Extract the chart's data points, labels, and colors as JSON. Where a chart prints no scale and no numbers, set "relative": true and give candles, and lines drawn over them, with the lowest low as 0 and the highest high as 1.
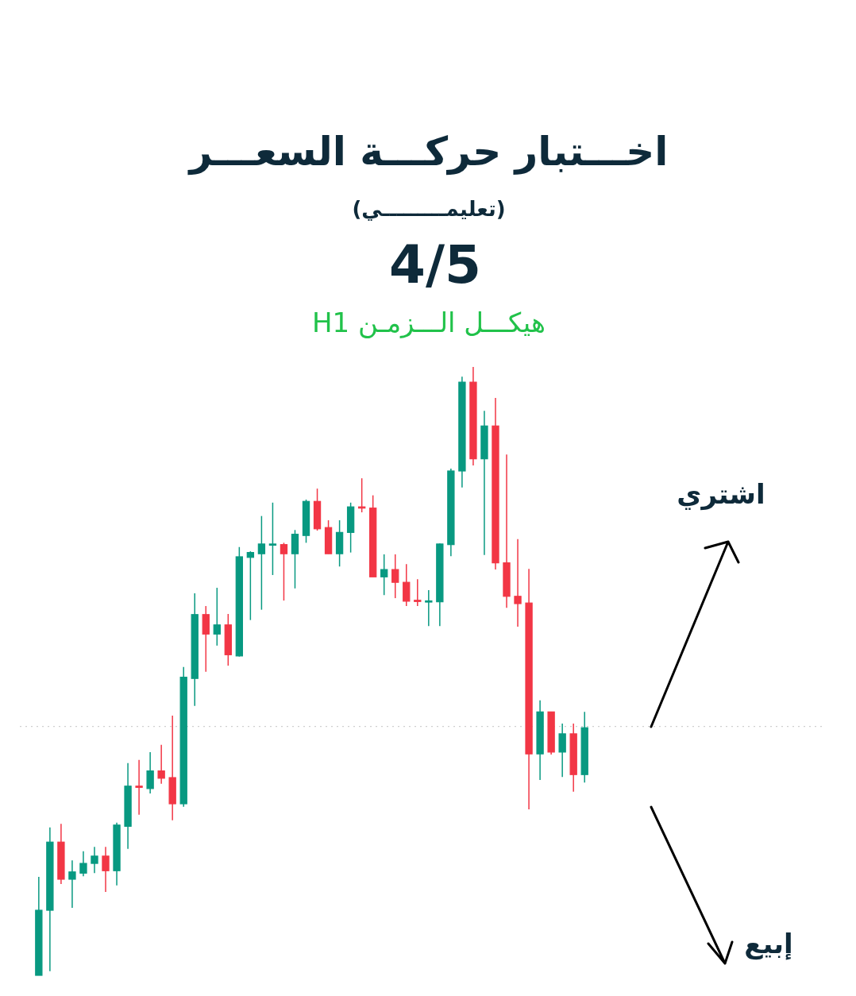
{
  "chart_data": {
    "type": "candlestick",
    "title": "اخـــتبار حركـــة السعـــر",
    "subtitle": "(تعليمـــــــــي)",
    "relative": true,
    "categories": [
      null,
      null,
      null,
      null,
      null,
      null,
      null,
      null,
      null,
      null,
      null,
      null,
      null,
      null,
      null,
      null,
      null,
      null,
      null,
      null,
      null,
      null,
      null,
      null,
      null,
      null,
      null,
      null,
      null,
      null,
      null,
      null,
      null,
      null,
      null,
      null,
      null,
      null,
      null,
      null,
      null,
      null,
      null,
      null,
      null,
      null,
      null,
      null,
      null,
      null
    ],
    "ohlc": [
      [
        0,
        0.162,
        0,
        0.107
      ],
      [
        0.107,
        0.243,
        0.007,
        0.219
      ],
      [
        0.219,
        0.249,
        0.15,
        0.158
      ],
      [
        0.158,
        0.189,
        0.111,
        0.17
      ],
      [
        0.168,
        0.204,
        0.163,
        0.184
      ],
      [
        0.184,
        0.211,
        0.168,
        0.196
      ],
      [
        0.196,
        0.211,
        0.137,
        0.172
      ],
      [
        0.172,
        0.251,
        0.148,
        0.247
      ],
      [
        0.245,
        0.349,
        0.208,
        0.311
      ],
      [
        0.311,
        0.354,
        0.264,
        0.309
      ],
      [
        0.307,
        0.367,
        0.299,
        0.336
      ],
      [
        0.336,
        0.379,
        0.315,
        0.324
      ],
      [
        0.325,
        0.427,
        0.255,
        0.282
      ],
      [
        0.282,
        0.507,
        0.277,
        0.49
      ],
      [
        0.488,
        0.628,
        0.443,
        0.593
      ],
      [
        0.593,
        0.607,
        0.499,
        0.561
      ],
      [
        0.561,
        0.637,
        0.542,
        0.576
      ],
      [
        0.576,
        0.594,
        0.509,
        0.527
      ],
      [
        0.525,
        0.704,
        0.524,
        0.688
      ],
      [
        0.687,
        0.697,
        0.584,
        0.695
      ],
      [
        0.693,
        0.755,
        0.601,
        0.709
      ],
      [
        0.708,
        0.777,
        0.658,
        0.708
      ],
      [
        0.708,
        0.711,
        0.616,
        0.693
      ],
      [
        0.693,
        0.732,
        0.636,
        0.725
      ],
      [
        0.723,
        0.782,
        0.711,
        0.779
      ],
      [
        0.779,
        0.8,
        0.731,
        0.734
      ],
      [
        0.736,
        0.748,
        0.693,
        0.693
      ],
      [
        0.693,
        0.748,
        0.672,
        0.728
      ],
      [
        0.728,
        0.777,
        0.695,
        0.77
      ],
      [
        0.77,
        0.817,
        0.761,
        0.768
      ],
      [
        0.768,
        0.789,
        0.655,
        0.655
      ],
      [
        0.655,
        0.692,
        0.625,
        0.667
      ],
      [
        0.667,
        0.692,
        0.62,
        0.646
      ],
      [
        0.646,
        0.676,
        0.607,
        0.615
      ],
      [
        0.616,
        0.651,
        0.607,
        0.615
      ],
      [
        0.614,
        0.633,
        0.574,
        0.615
      ],
      [
        0.614,
        0.71,
        0.574,
        0.709
      ],
      [
        0.708,
        0.833,
        0.689,
        0.829
      ],
      [
        0.829,
        0.984,
        0.802,
        0.975
      ],
      [
        0.975,
        1,
        0.838,
        0.849
      ],
      [
        0.849,
        0.928,
        0.691,
        0.903
      ],
      [
        0.903,
        0.949,
        0.667,
        0.678
      ],
      [
        0.678,
        0.856,
        0.604,
        0.623
      ],
      [
        0.623,
        0.717,
        0.573,
        0.611
      ],
      [
        0.612,
        0.668,
        0.273,
        0.364
      ],
      [
        0.364,
        0.452,
        0.321,
        0.433
      ],
      [
        0.433,
        0.433,
        0.363,
        0.367
      ],
      [
        0.367,
        0.414,
        0.326,
        0.397
      ],
      [
        0.397,
        0.414,
        0.302,
        0.33
      ],
      [
        0.33,
        0.433,
        0.317,
        0.407
      ]
    ],
    "colors": [
      "#089981",
      "#089981",
      "#f23645",
      "#089981",
      "#089981",
      "#089981",
      "#f23645",
      "#089981",
      "#089981",
      "#f23645",
      "#089981",
      "#f23645",
      "#f23645",
      "#089981",
      "#089981",
      "#f23645",
      "#089981",
      "#f23645",
      "#089981",
      "#089981",
      "#089981",
      "#089981",
      "#f23645",
      "#089981",
      "#089981",
      "#f23645",
      "#f23645",
      "#089981",
      "#089981",
      "#f23645",
      "#f23645",
      "#089981",
      "#f23645",
      "#f23645",
      "#f23645",
      "#089981",
      "#089981",
      "#089981",
      "#089981",
      "#f23645",
      "#089981",
      "#f23645",
      "#f23645",
      "#f23645",
      "#f23645",
      "#089981",
      "#f23645",
      "#089981",
      "#f23645",
      "#089981"
    ],
    "ref_lines": [
      {
        "axis": "y",
        "value": 0.409,
        "color": "#cfcfcf",
        "line_style": "dotted"
      }
    ],
    "annotations": [
      "4/5",
      "هيكـــل الـــزمـن H1",
      "اشتري",
      "إبيع"
    ]
  }
}
